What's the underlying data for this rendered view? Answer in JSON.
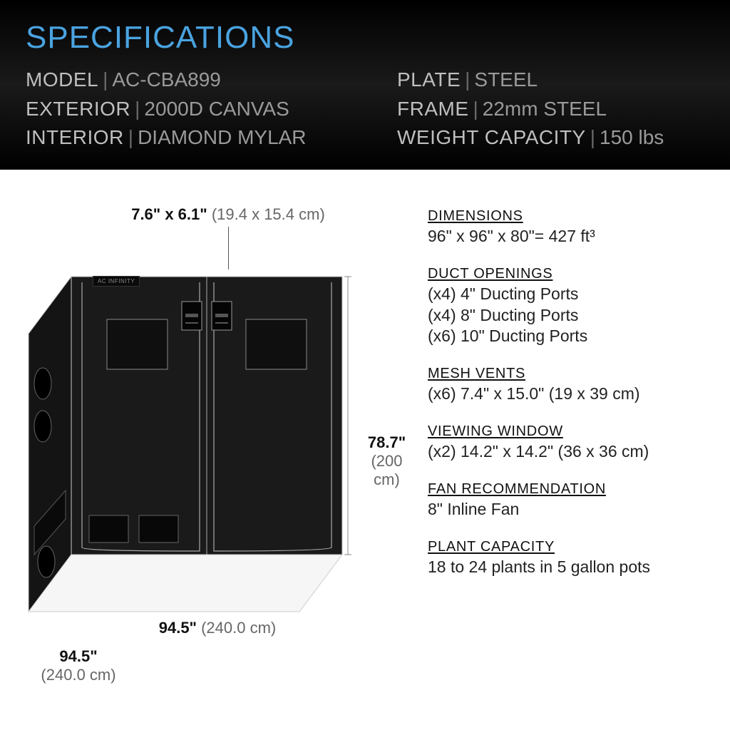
{
  "header": {
    "title": "SPECIFICATIONS",
    "title_color": "#4aa3e0",
    "background": "linear-gradient(#000000,#1a1a1a,#000000)",
    "left_col": [
      {
        "label": "MODEL",
        "value": "AC-CBA899"
      },
      {
        "label": "EXTERIOR",
        "value": "2000D CANVAS"
      },
      {
        "label": "INTERIOR",
        "value": "DIAMOND MYLAR"
      }
    ],
    "right_col": [
      {
        "label": "PLATE",
        "value": "STEEL"
      },
      {
        "label": "FRAME",
        "value": "22mm STEEL"
      },
      {
        "label": "WEIGHT CAPACITY",
        "value": "150 lbs"
      }
    ]
  },
  "diagram": {
    "brand": "AC INFINITY",
    "top_dim_bold": "7.6\" x 6.1\"",
    "top_dim_grey": "(19.4 x 15.4 cm)",
    "height_bold": "78.7\"",
    "height_grey": "(200 cm)",
    "width_bold": "94.5\"",
    "width_grey": "(240.0 cm)",
    "depth_bold": "94.5\"",
    "depth_grey": "(240.0 cm)",
    "tent_color": "#1a1a1a",
    "tent_outline": "#cfcfcf",
    "port_color": "#0a0a0a"
  },
  "details": [
    {
      "heading": "DIMENSIONS",
      "lines": [
        "96\" x 96\" x 80\"=  427 ft³"
      ]
    },
    {
      "heading": "DUCT OPENINGS",
      "lines": [
        "(x4) 4\" Ducting Ports",
        "(x4) 8\" Ducting Ports",
        "(x6) 10\" Ducting Ports"
      ]
    },
    {
      "heading": "MESH VENTS",
      "lines": [
        "(x6) 7.4\" x 15.0\" (19 x 39 cm)"
      ]
    },
    {
      "heading": "VIEWING WINDOW",
      "lines": [
        "(x2) 14.2\" x 14.2\" (36 x 36 cm)"
      ]
    },
    {
      "heading": "FAN RECOMMENDATION",
      "lines": [
        "8\" Inline Fan"
      ]
    },
    {
      "heading": "PLANT CAPACITY",
      "lines": [
        "18 to 24 plants in 5 gallon pots"
      ]
    }
  ]
}
